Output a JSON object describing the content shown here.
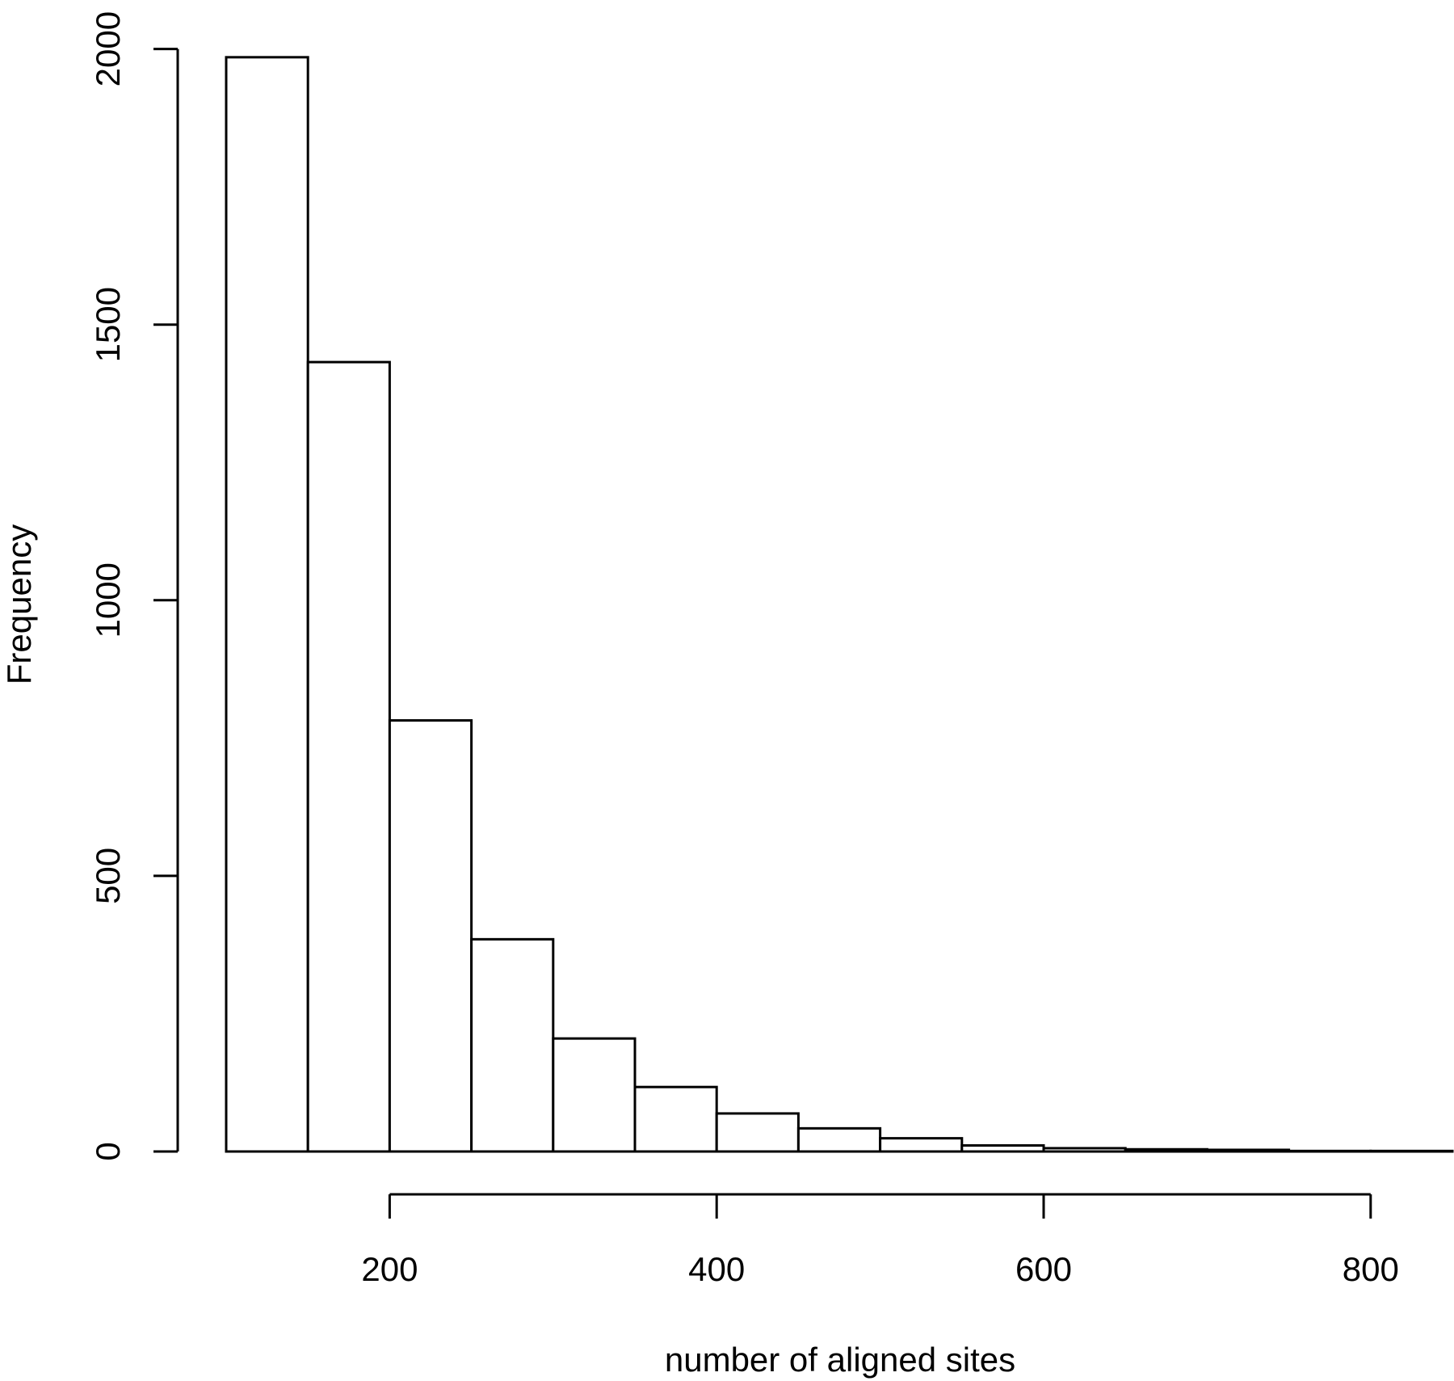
{
  "chart_data": {
    "type": "bar",
    "subtype": "histogram",
    "xlabel": "number of aligned sites",
    "ylabel": "Frequency",
    "x_ticks": [
      200,
      400,
      600,
      800
    ],
    "y_ticks": [
      0,
      500,
      1000,
      1500,
      2000
    ],
    "xlim": [
      100,
      850
    ],
    "ylim": [
      0,
      2000
    ],
    "bins": [
      {
        "x0": 100,
        "x1": 150,
        "value": 1985
      },
      {
        "x0": 150,
        "x1": 200,
        "value": 1432
      },
      {
        "x0": 200,
        "x1": 250,
        "value": 782
      },
      {
        "x0": 250,
        "x1": 300,
        "value": 385
      },
      {
        "x0": 300,
        "x1": 350,
        "value": 205
      },
      {
        "x0": 350,
        "x1": 400,
        "value": 117
      },
      {
        "x0": 400,
        "x1": 450,
        "value": 69
      },
      {
        "x0": 450,
        "x1": 500,
        "value": 42
      },
      {
        "x0": 500,
        "x1": 550,
        "value": 24
      },
      {
        "x0": 550,
        "x1": 600,
        "value": 11
      },
      {
        "x0": 600,
        "x1": 650,
        "value": 6
      },
      {
        "x0": 650,
        "x1": 700,
        "value": 4
      },
      {
        "x0": 700,
        "x1": 750,
        "value": 3
      },
      {
        "x0": 750,
        "x1": 800,
        "value": 1
      },
      {
        "x0": 800,
        "x1": 850,
        "value": 1
      }
    ]
  }
}
